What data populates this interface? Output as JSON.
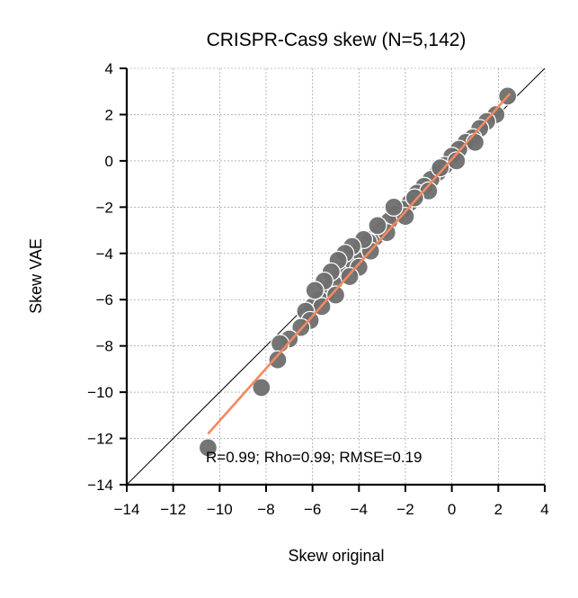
{
  "chart_data": {
    "type": "scatter",
    "title": "CRISPR-Cas9 skew (N=5,142)",
    "xlabel": "Skew original",
    "ylabel": "Skew VAE",
    "xlim": [
      -14,
      4
    ],
    "ylim": [
      -14,
      4
    ],
    "xticks": [
      -14,
      -12,
      -10,
      -8,
      -6,
      -4,
      -2,
      0,
      2,
      4
    ],
    "yticks": [
      -14,
      -12,
      -10,
      -8,
      -6,
      -4,
      -2,
      0,
      2,
      4
    ],
    "xtick_labels": [
      "−14",
      "−12",
      "−10",
      "−8",
      "−6",
      "−4",
      "−2",
      "0",
      "2",
      "4"
    ],
    "ytick_labels": [
      "−14",
      "−12",
      "−10",
      "−8",
      "−6",
      "−4",
      "−2",
      "0",
      "2",
      "4"
    ],
    "grid": true,
    "annotation": "R=0.99; Rho=0.99; RMSE=0.19",
    "point_color": "#6e6e6e",
    "point_edge_color": "#ffffff",
    "fit_color": "#f4895f",
    "identity_line": true,
    "fit_line": {
      "x": [
        -10.5,
        2.5
      ],
      "y": [
        -11.8,
        2.9
      ]
    },
    "points": [
      {
        "x": 2.4,
        "y": 2.8
      },
      {
        "x": 1.9,
        "y": 2.0
      },
      {
        "x": 1.5,
        "y": 1.7
      },
      {
        "x": 1.2,
        "y": 1.4
      },
      {
        "x": 0.9,
        "y": 1.0
      },
      {
        "x": 0.6,
        "y": 0.8
      },
      {
        "x": 0.3,
        "y": 0.5
      },
      {
        "x": 0.0,
        "y": 0.2
      },
      {
        "x": -0.3,
        "y": -0.2
      },
      {
        "x": -0.6,
        "y": -0.5
      },
      {
        "x": -0.9,
        "y": -0.8
      },
      {
        "x": -1.2,
        "y": -1.1
      },
      {
        "x": -1.5,
        "y": -1.4
      },
      {
        "x": -1.8,
        "y": -1.8
      },
      {
        "x": -2.1,
        "y": -2.1
      },
      {
        "x": -2.4,
        "y": -2.3
      },
      {
        "x": -2.7,
        "y": -2.6
      },
      {
        "x": -3.0,
        "y": -3.0
      },
      {
        "x": -3.3,
        "y": -3.3
      },
      {
        "x": -3.6,
        "y": -3.5
      },
      {
        "x": -3.9,
        "y": -3.8
      },
      {
        "x": -4.2,
        "y": -4.2
      },
      {
        "x": -4.5,
        "y": -4.5
      },
      {
        "x": -4.8,
        "y": -4.9
      },
      {
        "x": -5.1,
        "y": -5.3
      },
      {
        "x": -5.4,
        "y": -5.7
      },
      {
        "x": -5.7,
        "y": -6.0
      },
      {
        "x": -6.0,
        "y": -6.3
      },
      {
        "x": 1.0,
        "y": 0.8
      },
      {
        "x": 0.2,
        "y": 0.0
      },
      {
        "x": -0.5,
        "y": -0.3
      },
      {
        "x": -1.0,
        "y": -1.3
      },
      {
        "x": -1.6,
        "y": -1.6
      },
      {
        "x": -2.0,
        "y": -2.4
      },
      {
        "x": -2.5,
        "y": -2.0
      },
      {
        "x": -2.8,
        "y": -3.1
      },
      {
        "x": -3.2,
        "y": -2.8
      },
      {
        "x": -3.5,
        "y": -3.9
      },
      {
        "x": -3.8,
        "y": -3.4
      },
      {
        "x": -4.0,
        "y": -4.6
      },
      {
        "x": -4.3,
        "y": -3.7
      },
      {
        "x": -4.6,
        "y": -4.0
      },
      {
        "x": -4.4,
        "y": -5.0
      },
      {
        "x": -4.9,
        "y": -4.3
      },
      {
        "x": -5.0,
        "y": -5.8
      },
      {
        "x": -5.2,
        "y": -4.8
      },
      {
        "x": -5.5,
        "y": -5.2
      },
      {
        "x": -5.6,
        "y": -6.3
      },
      {
        "x": -5.9,
        "y": -5.6
      },
      {
        "x": -6.3,
        "y": -6.5
      },
      {
        "x": -6.1,
        "y": -6.9
      },
      {
        "x": -6.5,
        "y": -7.2
      },
      {
        "x": -7.0,
        "y": -7.7
      },
      {
        "x": -7.4,
        "y": -7.9
      },
      {
        "x": -7.5,
        "y": -8.6
      },
      {
        "x": -8.2,
        "y": -9.8
      },
      {
        "x": -10.5,
        "y": -12.4
      }
    ]
  }
}
